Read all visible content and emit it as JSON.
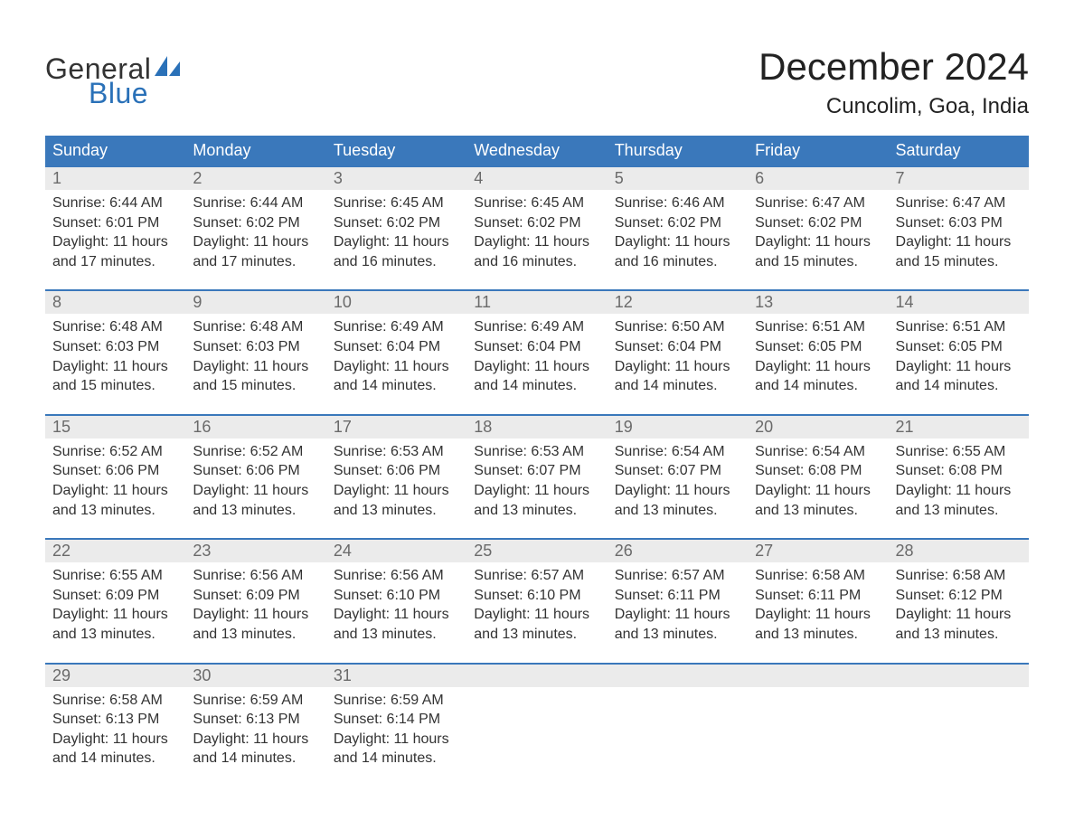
{
  "brand": {
    "word1": "General",
    "word2": "Blue",
    "logo_color": "#2a71b8"
  },
  "title": "December 2024",
  "location": "Cuncolim, Goa, India",
  "colors": {
    "header_bg": "#3a78bb",
    "header_text": "#ffffff",
    "daynum_bg": "#ebebeb",
    "daynum_text": "#6a6a6a",
    "body_text": "#333333",
    "rule": "#3a78bb",
    "page_bg": "#ffffff"
  },
  "typography": {
    "title_fontsize": 42,
    "location_fontsize": 24,
    "dow_fontsize": 18,
    "daynum_fontsize": 18,
    "cell_fontsize": 16
  },
  "days_of_week": [
    "Sunday",
    "Monday",
    "Tuesday",
    "Wednesday",
    "Thursday",
    "Friday",
    "Saturday"
  ],
  "weeks": [
    [
      {
        "num": "1",
        "sunrise": "6:44 AM",
        "sunset": "6:01 PM",
        "daylight_hours": 11,
        "daylight_minutes": 17
      },
      {
        "num": "2",
        "sunrise": "6:44 AM",
        "sunset": "6:02 PM",
        "daylight_hours": 11,
        "daylight_minutes": 17
      },
      {
        "num": "3",
        "sunrise": "6:45 AM",
        "sunset": "6:02 PM",
        "daylight_hours": 11,
        "daylight_minutes": 16
      },
      {
        "num": "4",
        "sunrise": "6:45 AM",
        "sunset": "6:02 PM",
        "daylight_hours": 11,
        "daylight_minutes": 16
      },
      {
        "num": "5",
        "sunrise": "6:46 AM",
        "sunset": "6:02 PM",
        "daylight_hours": 11,
        "daylight_minutes": 16
      },
      {
        "num": "6",
        "sunrise": "6:47 AM",
        "sunset": "6:02 PM",
        "daylight_hours": 11,
        "daylight_minutes": 15
      },
      {
        "num": "7",
        "sunrise": "6:47 AM",
        "sunset": "6:03 PM",
        "daylight_hours": 11,
        "daylight_minutes": 15
      }
    ],
    [
      {
        "num": "8",
        "sunrise": "6:48 AM",
        "sunset": "6:03 PM",
        "daylight_hours": 11,
        "daylight_minutes": 15
      },
      {
        "num": "9",
        "sunrise": "6:48 AM",
        "sunset": "6:03 PM",
        "daylight_hours": 11,
        "daylight_minutes": 15
      },
      {
        "num": "10",
        "sunrise": "6:49 AM",
        "sunset": "6:04 PM",
        "daylight_hours": 11,
        "daylight_minutes": 14
      },
      {
        "num": "11",
        "sunrise": "6:49 AM",
        "sunset": "6:04 PM",
        "daylight_hours": 11,
        "daylight_minutes": 14
      },
      {
        "num": "12",
        "sunrise": "6:50 AM",
        "sunset": "6:04 PM",
        "daylight_hours": 11,
        "daylight_minutes": 14
      },
      {
        "num": "13",
        "sunrise": "6:51 AM",
        "sunset": "6:05 PM",
        "daylight_hours": 11,
        "daylight_minutes": 14
      },
      {
        "num": "14",
        "sunrise": "6:51 AM",
        "sunset": "6:05 PM",
        "daylight_hours": 11,
        "daylight_minutes": 14
      }
    ],
    [
      {
        "num": "15",
        "sunrise": "6:52 AM",
        "sunset": "6:06 PM",
        "daylight_hours": 11,
        "daylight_minutes": 13
      },
      {
        "num": "16",
        "sunrise": "6:52 AM",
        "sunset": "6:06 PM",
        "daylight_hours": 11,
        "daylight_minutes": 13
      },
      {
        "num": "17",
        "sunrise": "6:53 AM",
        "sunset": "6:06 PM",
        "daylight_hours": 11,
        "daylight_minutes": 13
      },
      {
        "num": "18",
        "sunrise": "6:53 AM",
        "sunset": "6:07 PM",
        "daylight_hours": 11,
        "daylight_minutes": 13
      },
      {
        "num": "19",
        "sunrise": "6:54 AM",
        "sunset": "6:07 PM",
        "daylight_hours": 11,
        "daylight_minutes": 13
      },
      {
        "num": "20",
        "sunrise": "6:54 AM",
        "sunset": "6:08 PM",
        "daylight_hours": 11,
        "daylight_minutes": 13
      },
      {
        "num": "21",
        "sunrise": "6:55 AM",
        "sunset": "6:08 PM",
        "daylight_hours": 11,
        "daylight_minutes": 13
      }
    ],
    [
      {
        "num": "22",
        "sunrise": "6:55 AM",
        "sunset": "6:09 PM",
        "daylight_hours": 11,
        "daylight_minutes": 13
      },
      {
        "num": "23",
        "sunrise": "6:56 AM",
        "sunset": "6:09 PM",
        "daylight_hours": 11,
        "daylight_minutes": 13
      },
      {
        "num": "24",
        "sunrise": "6:56 AM",
        "sunset": "6:10 PM",
        "daylight_hours": 11,
        "daylight_minutes": 13
      },
      {
        "num": "25",
        "sunrise": "6:57 AM",
        "sunset": "6:10 PM",
        "daylight_hours": 11,
        "daylight_minutes": 13
      },
      {
        "num": "26",
        "sunrise": "6:57 AM",
        "sunset": "6:11 PM",
        "daylight_hours": 11,
        "daylight_minutes": 13
      },
      {
        "num": "27",
        "sunrise": "6:58 AM",
        "sunset": "6:11 PM",
        "daylight_hours": 11,
        "daylight_minutes": 13
      },
      {
        "num": "28",
        "sunrise": "6:58 AM",
        "sunset": "6:12 PM",
        "daylight_hours": 11,
        "daylight_minutes": 13
      }
    ],
    [
      {
        "num": "29",
        "sunrise": "6:58 AM",
        "sunset": "6:13 PM",
        "daylight_hours": 11,
        "daylight_minutes": 14
      },
      {
        "num": "30",
        "sunrise": "6:59 AM",
        "sunset": "6:13 PM",
        "daylight_hours": 11,
        "daylight_minutes": 14
      },
      {
        "num": "31",
        "sunrise": "6:59 AM",
        "sunset": "6:14 PM",
        "daylight_hours": 11,
        "daylight_minutes": 14
      },
      null,
      null,
      null,
      null
    ]
  ]
}
